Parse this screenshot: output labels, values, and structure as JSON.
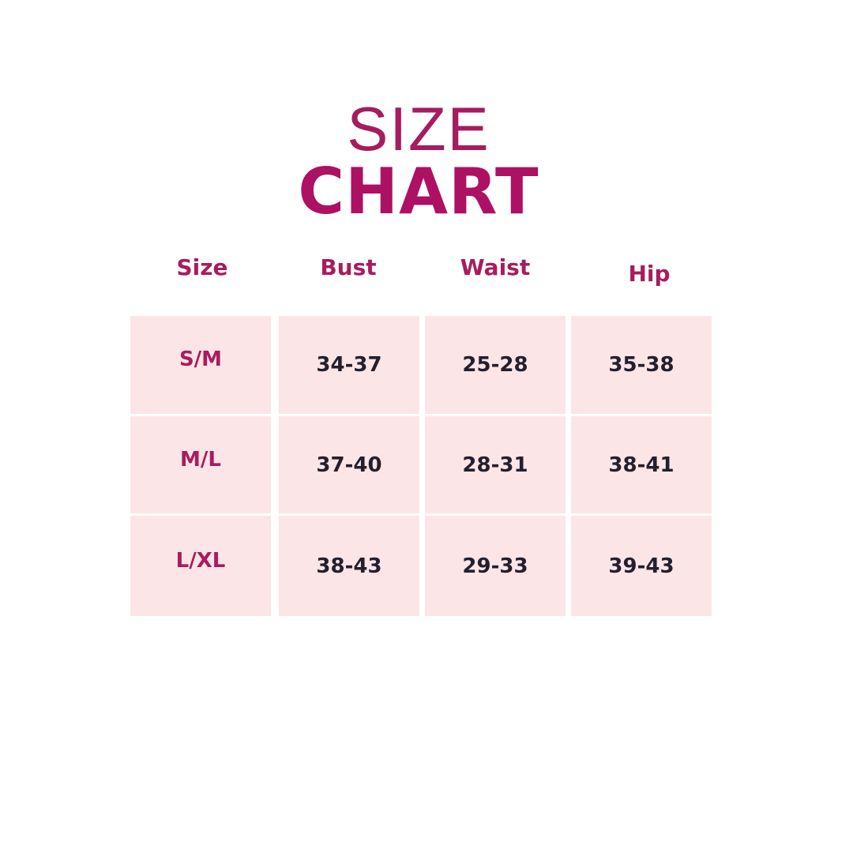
{
  "title": {
    "line1": "SIZE",
    "line2": "CHART"
  },
  "colors": {
    "accent": "#ad1163",
    "cell_bg": "#fce5e6",
    "value_text": "#231f2e"
  },
  "table": {
    "headers": [
      "Size",
      "Bust",
      "Waist",
      "Hip"
    ],
    "rows": [
      [
        "S/M",
        "34-37",
        "25-28",
        "35-38"
      ],
      [
        "M/L",
        "37-40",
        "28-31",
        "38-41"
      ],
      [
        "L/XL",
        "38-43",
        "29-33",
        "39-43"
      ]
    ]
  }
}
